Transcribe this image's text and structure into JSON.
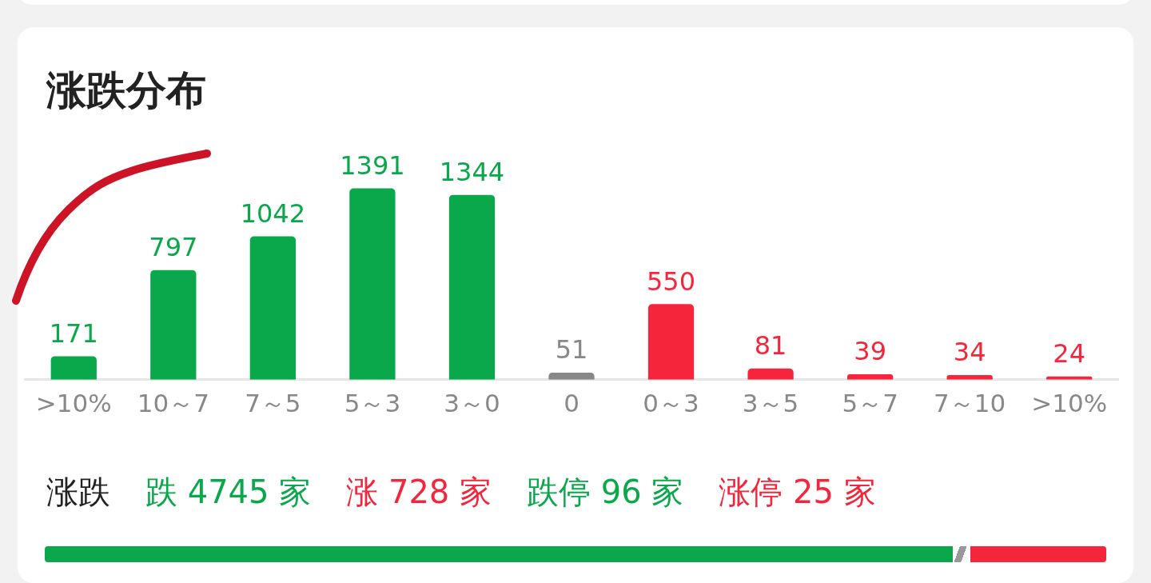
{
  "chart_data": {
    "type": "bar",
    "title": "涨跌分布",
    "categories": [
      ">10%",
      "10～7",
      "7～5",
      "5～3",
      "3～0",
      "0",
      "0～3",
      "3～5",
      "5～7",
      "7～10",
      ">10%"
    ],
    "values": [
      171,
      797,
      1042,
      1391,
      1344,
      51,
      550,
      81,
      39,
      34,
      24
    ],
    "colors": [
      "#0aa84a",
      "#0aa84a",
      "#0aa84a",
      "#0aa84a",
      "#0aa84a",
      "#888888",
      "#f5263c",
      "#f5263c",
      "#f5263c",
      "#f5263c",
      "#f5263c"
    ],
    "data_labels": true,
    "grid": false,
    "legend": false,
    "annotations": [
      "涨跌",
      "跌 4745 家",
      "涨 728 家",
      "跌停 96 家",
      "涨停 25 家"
    ]
  }
}
